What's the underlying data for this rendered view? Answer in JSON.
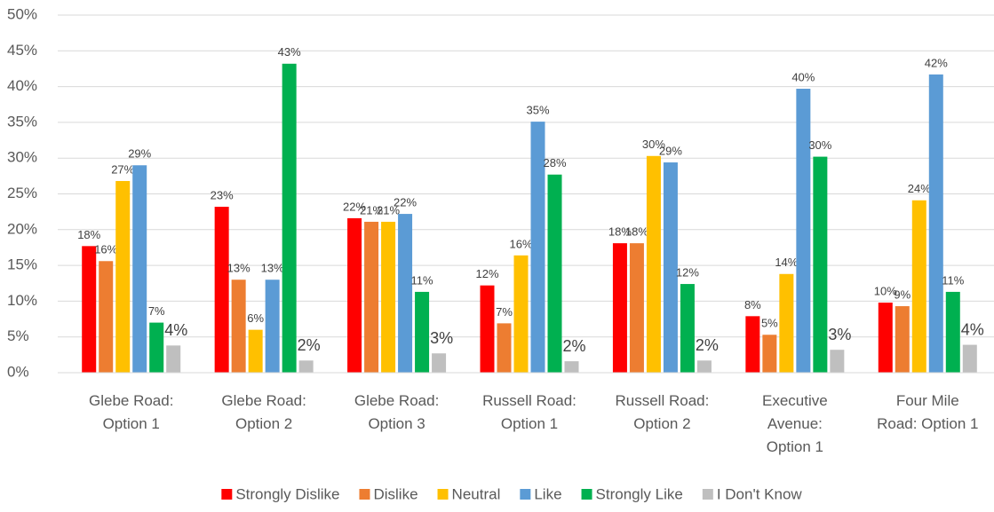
{
  "chart_data": {
    "type": "bar",
    "categories": [
      "Glebe Road:\nOption 1",
      "Glebe Road:\nOption 2",
      "Glebe Road:\nOption 3",
      "Russell Road:\nOption 1",
      "Russell Road:\nOption 2",
      "Executive\nAvenue:\nOption 1",
      "Four Mile\nRoad: Option 1"
    ],
    "series": [
      {
        "name": "Strongly Dislike",
        "color": "#ff0000",
        "values": [
          17.7,
          23.2,
          21.6,
          12.2,
          18.1,
          7.9,
          9.8
        ],
        "value_labels": [
          "18%",
          "23%",
          "22%",
          "12%",
          "18%",
          "8%",
          "10%"
        ]
      },
      {
        "name": "Dislike",
        "color": "#ed7d31",
        "values": [
          15.6,
          13.0,
          21.1,
          6.9,
          18.1,
          5.3,
          9.3
        ],
        "value_labels": [
          "16%",
          "13%",
          "21%",
          "7%",
          "18%",
          "5%",
          "9%"
        ]
      },
      {
        "name": "Neutral",
        "color": "#ffc000",
        "values": [
          26.8,
          6.0,
          21.1,
          16.4,
          30.3,
          13.8,
          24.1
        ],
        "value_labels": [
          "27%",
          "6%",
          "21%",
          "16%",
          "30%",
          "14%",
          "24%"
        ]
      },
      {
        "name": "Like",
        "color": "#5b9bd5",
        "values": [
          29.0,
          13.0,
          22.2,
          35.1,
          29.4,
          39.7,
          41.7
        ],
        "value_labels": [
          "29%",
          "13%",
          "22%",
          "35%",
          "29%",
          "40%",
          "42%"
        ]
      },
      {
        "name": "Strongly Like",
        "color": "#00b050",
        "values": [
          7.0,
          43.2,
          11.3,
          27.7,
          12.4,
          30.2,
          11.3
        ],
        "value_labels": [
          "7%",
          "43%",
          "11%",
          "28%",
          "12%",
          "30%",
          "11%"
        ]
      },
      {
        "name": "I Don't Know",
        "color": "#bfbfbf",
        "values": [
          3.8,
          1.7,
          2.7,
          1.6,
          1.7,
          3.2,
          3.9
        ],
        "value_labels": [
          "4%",
          "2%",
          "3%",
          "2%",
          "2%",
          "3%",
          "4%"
        ]
      }
    ],
    "ylim": [
      0,
      50
    ],
    "yticks": [
      {
        "value": 0,
        "label": "0%"
      },
      {
        "value": 5,
        "label": "5%"
      },
      {
        "value": 10,
        "label": "10%"
      },
      {
        "value": 15,
        "label": "15%"
      },
      {
        "value": 20,
        "label": "20%"
      },
      {
        "value": 25,
        "label": "25%"
      },
      {
        "value": 30,
        "label": "30%"
      },
      {
        "value": 35,
        "label": "35%"
      },
      {
        "value": 40,
        "label": "40%"
      },
      {
        "value": 45,
        "label": "45%"
      },
      {
        "value": 50,
        "label": "50%"
      }
    ],
    "grid": true,
    "legend": "bottom"
  }
}
